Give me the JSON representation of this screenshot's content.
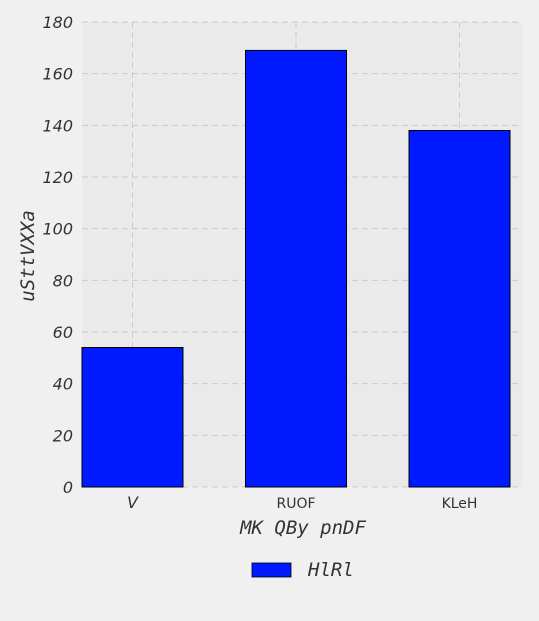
{
  "chart_data": {
    "type": "bar",
    "categories": [
      "V",
      "RUOF",
      "KLeH"
    ],
    "series": [
      {
        "name": "HlRl",
        "values": [
          54,
          169,
          138
        ]
      }
    ],
    "xlabel": "MK QBy pnDF",
    "ylabel": "uSttVXXa",
    "ylim": [
      0,
      180
    ],
    "yticks": [
      0,
      20,
      40,
      60,
      80,
      100,
      120,
      140,
      160,
      180
    ],
    "grid": true,
    "legend_position": "bottom-center",
    "colors": {
      "bar": "#0019ff",
      "background": "#f0f0f0",
      "plot_background": "#eaeaea",
      "grid": "#cbcbcb",
      "text": "#333333"
    }
  }
}
